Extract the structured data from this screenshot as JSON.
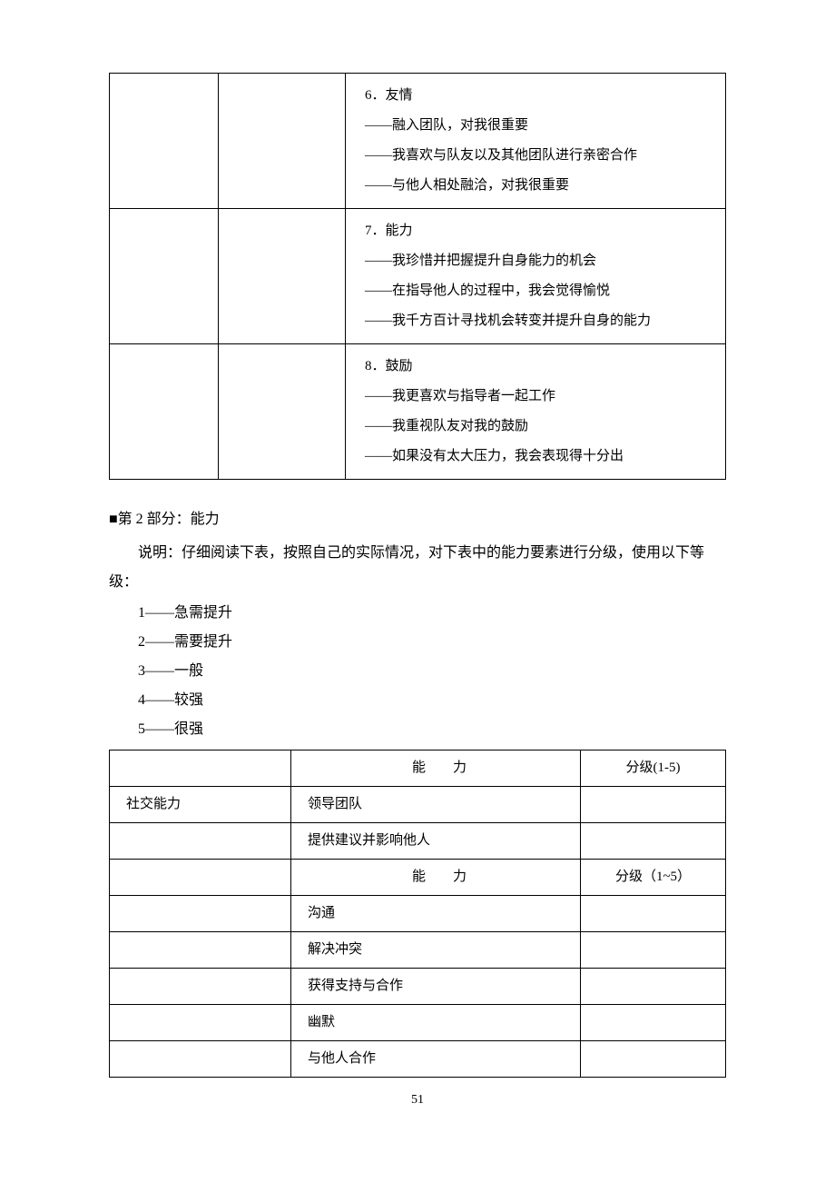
{
  "upper_table": {
    "rows": [
      {
        "c1": "",
        "c2": "",
        "c3": "　6．友情\n　——融入团队，对我很重要\n　——我喜欢与队友以及其他团队进行亲密合作\n　——与他人相处融洽，对我很重要"
      },
      {
        "c1": "",
        "c2": "",
        "c3": "　7．能力\n　——我珍惜并把握提升自身能力的机会\n　——在指导他人的过程中，我会觉得愉悦\n　——我千方百计寻找机会转变并提升自身的能力"
      },
      {
        "c1": "",
        "c2": "",
        "c3": "　8．鼓励\n　——我更喜欢与指导者一起工作\n　——我重视队友对我的鼓励\n　——如果没有太大压力，我会表现得十分出"
      }
    ]
  },
  "section2": {
    "title": "■第 2 部分：能力",
    "instruction": "说明：仔细阅读下表，按照自己的实际情况，对下表中的能力要素进行分级，使用以下等级：",
    "ratings": [
      "1——急需提升",
      "2——需要提升",
      "3——一般",
      "4——较强",
      "5——很强"
    ]
  },
  "lower_table": {
    "header1": {
      "c1": "",
      "c2": "能　　力",
      "c3": "分级(1-5)"
    },
    "rows1": [
      {
        "c1": "社交能力",
        "c2": "领导团队",
        "c3": ""
      },
      {
        "c1": "",
        "c2": "提供建议并影响他人",
        "c3": ""
      }
    ],
    "header2": {
      "c1": "",
      "c2": "能　　力",
      "c3": "分级（1~5）"
    },
    "rows2": [
      {
        "c1": "",
        "c2": "沟通",
        "c3": ""
      },
      {
        "c1": "",
        "c2": "解决冲突",
        "c3": ""
      },
      {
        "c1": "",
        "c2": "获得支持与合作",
        "c3": ""
      },
      {
        "c1": "",
        "c2": "幽默",
        "c3": ""
      },
      {
        "c1": "",
        "c2": "与他人合作",
        "c3": ""
      }
    ]
  },
  "page_number": "51"
}
